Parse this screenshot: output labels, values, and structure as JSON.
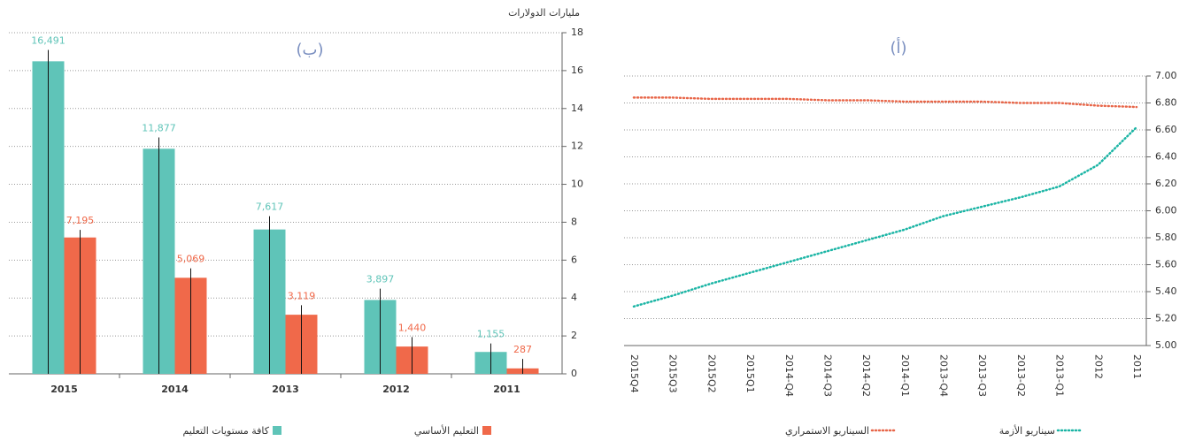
{
  "chart_data": [
    {
      "type": "bar",
      "title": "(ب)",
      "y_label": "مليارات الدولارات",
      "categories": [
        "2015",
        "2014",
        "2013",
        "2012",
        "2011"
      ],
      "series": [
        {
          "name": "كافة مستويات التعليم",
          "color": "#5fc4b8",
          "values": [
            16.491,
            11.877,
            7.617,
            3.897,
            1.155
          ],
          "value_labels": [
            "16,491",
            "11,877",
            "7,617",
            "3,897",
            "1,155"
          ],
          "errors": [
            0.6,
            0.6,
            0.7,
            0.6,
            0.45
          ]
        },
        {
          "name": "التعليم الأساسي",
          "color": "#f0694a",
          "values": [
            7.195,
            5.069,
            3.119,
            1.44,
            0.287
          ],
          "value_labels": [
            "7,195",
            "5,069",
            "3,119",
            "1,440",
            "287"
          ],
          "errors": [
            0.4,
            0.5,
            0.5,
            0.5,
            0.5
          ]
        }
      ],
      "ylim": [
        0,
        18
      ],
      "yticks": [
        0,
        2,
        4,
        6,
        8,
        10,
        12,
        14,
        16,
        18
      ],
      "grid": true
    },
    {
      "type": "line",
      "title": "(أ)",
      "categories": [
        "2015Q4",
        "2015Q3",
        "2015Q2",
        "2015Q1",
        "2014-Q4",
        "2014-Q3",
        "2014-Q2",
        "2014-Q1",
        "2013-Q4",
        "2013-Q3",
        "2013-Q2",
        "2013-Q1",
        "2012",
        "2011"
      ],
      "series": [
        {
          "name": "سيناريو الأزمة",
          "color": "#1bb5a5",
          "values": [
            5.29,
            5.37,
            5.46,
            5.54,
            5.62,
            5.7,
            5.78,
            5.86,
            5.96,
            6.03,
            6.1,
            6.18,
            6.34,
            6.62
          ]
        },
        {
          "name": "السيناريو الاستمراري",
          "color": "#e8674a",
          "values": [
            6.84,
            6.84,
            6.83,
            6.83,
            6.83,
            6.82,
            6.82,
            6.81,
            6.81,
            6.81,
            6.8,
            6.8,
            6.78,
            6.77
          ]
        }
      ],
      "ylim": [
        5,
        7
      ],
      "yticks": [
        {
          "value": 5,
          "label": "5.00"
        },
        {
          "value": 5.2,
          "label": "5.20"
        },
        {
          "value": 5.4,
          "label": "5.40"
        },
        {
          "value": 5.6,
          "label": "5.60"
        },
        {
          "value": 5.8,
          "label": "5.80"
        },
        {
          "value": 6,
          "label": "6.00"
        },
        {
          "value": 6.2,
          "label": "6.20"
        },
        {
          "value": 6.4,
          "label": "6.40"
        },
        {
          "value": 6.6,
          "label": "6.60"
        },
        {
          "value": 6.8,
          "label": "6.80"
        },
        {
          "value": 7,
          "label": "7.00"
        }
      ],
      "grid": true
    }
  ]
}
